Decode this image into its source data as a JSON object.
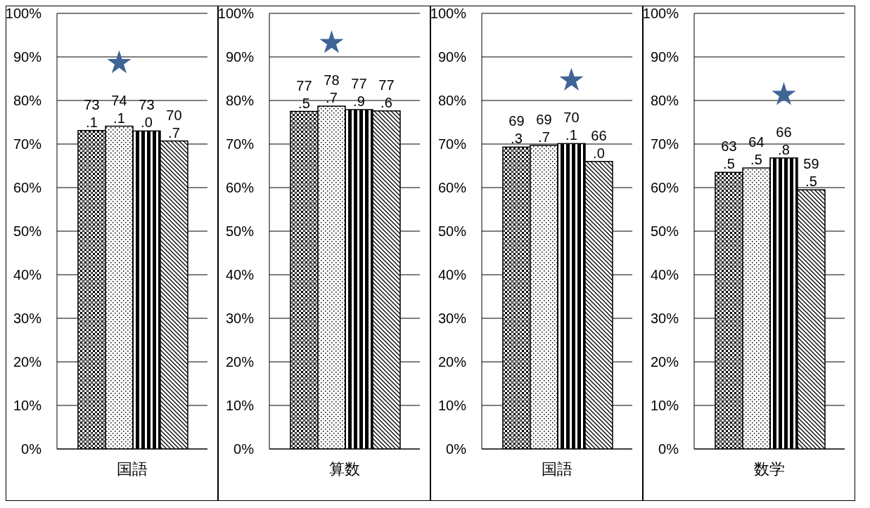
{
  "chart_data": [
    {
      "type": "bar",
      "categories": [
        "国語"
      ],
      "series": [
        {
          "color": "#000000",
          "values": [
            73.1
          ],
          "value_labels": [
            "73.1"
          ]
        },
        {
          "color": "#000000",
          "values": [
            74.1
          ],
          "value_labels": [
            "74.1"
          ]
        },
        {
          "color": "#000000",
          "values": [
            73.0
          ],
          "value_labels": [
            "73.0"
          ]
        },
        {
          "color": "#000000",
          "values": [
            70.7
          ],
          "value_labels": [
            "70.7"
          ]
        }
      ],
      "ylim": [
        0,
        100
      ],
      "yticks": [
        {
          "value": 0,
          "label": "0%"
        },
        {
          "value": 10,
          "label": "10%"
        },
        {
          "value": 20,
          "label": "20%"
        },
        {
          "value": 30,
          "label": "30%"
        },
        {
          "value": 40,
          "label": "40%"
        },
        {
          "value": 50,
          "label": "50%"
        },
        {
          "value": 60,
          "label": "60%"
        },
        {
          "value": 70,
          "label": "70%"
        },
        {
          "value": 80,
          "label": "80%"
        },
        {
          "value": 90,
          "label": "90%"
        },
        {
          "value": 100,
          "label": "100%"
        }
      ],
      "grid": "y",
      "legend": false
    },
    {
      "type": "bar",
      "categories": [
        "算数"
      ],
      "series": [
        {
          "color": "#000000",
          "values": [
            77.5
          ],
          "value_labels": [
            "77.5"
          ]
        },
        {
          "color": "#000000",
          "values": [
            78.7
          ],
          "value_labels": [
            "78.7"
          ]
        },
        {
          "color": "#000000",
          "values": [
            77.9
          ],
          "value_labels": [
            "77.9"
          ]
        },
        {
          "color": "#000000",
          "values": [
            77.6
          ],
          "value_labels": [
            "77.6"
          ]
        }
      ],
      "ylim": [
        0,
        100
      ],
      "yticks": [
        {
          "value": 0,
          "label": "0%"
        },
        {
          "value": 10,
          "label": "10%"
        },
        {
          "value": 20,
          "label": "20%"
        },
        {
          "value": 30,
          "label": "30%"
        },
        {
          "value": 40,
          "label": "40%"
        },
        {
          "value": 50,
          "label": "50%"
        },
        {
          "value": 60,
          "label": "60%"
        },
        {
          "value": 70,
          "label": "70%"
        },
        {
          "value": 80,
          "label": "80%"
        },
        {
          "value": 90,
          "label": "90%"
        },
        {
          "value": 100,
          "label": "100%"
        }
      ],
      "grid": "y",
      "legend": false
    },
    {
      "type": "bar",
      "categories": [
        "国語"
      ],
      "series": [
        {
          "color": "#000000",
          "values": [
            69.3
          ],
          "value_labels": [
            "69.3"
          ]
        },
        {
          "color": "#000000",
          "values": [
            69.7
          ],
          "value_labels": [
            "69.7"
          ]
        },
        {
          "color": "#000000",
          "values": [
            70.1
          ],
          "value_labels": [
            "70.1"
          ]
        },
        {
          "color": "#000000",
          "values": [
            66.0
          ],
          "value_labels": [
            "66.0"
          ]
        }
      ],
      "ylim": [
        0,
        100
      ],
      "yticks": [
        {
          "value": 0,
          "label": "0%"
        },
        {
          "value": 10,
          "label": "10%"
        },
        {
          "value": 20,
          "label": "20%"
        },
        {
          "value": 30,
          "label": "30%"
        },
        {
          "value": 40,
          "label": "40%"
        },
        {
          "value": 50,
          "label": "50%"
        },
        {
          "value": 60,
          "label": "60%"
        },
        {
          "value": 70,
          "label": "70%"
        },
        {
          "value": 80,
          "label": "80%"
        },
        {
          "value": 90,
          "label": "90%"
        },
        {
          "value": 100,
          "label": "100%"
        }
      ],
      "grid": "y",
      "legend": false
    },
    {
      "type": "bar",
      "categories": [
        "数学"
      ],
      "series": [
        {
          "color": "#000000",
          "values": [
            63.5
          ],
          "value_labels": [
            "63.5"
          ]
        },
        {
          "color": "#000000",
          "values": [
            64.5
          ],
          "value_labels": [
            "64.5"
          ]
        },
        {
          "color": "#000000",
          "values": [
            66.8
          ],
          "value_labels": [
            "66.8"
          ]
        },
        {
          "color": "#000000",
          "values": [
            59.5
          ],
          "value_labels": [
            "59.5"
          ]
        }
      ],
      "ylim": [
        0,
        100
      ],
      "yticks": [
        {
          "value": 0,
          "label": "0%"
        },
        {
          "value": 10,
          "label": "10%"
        },
        {
          "value": 20,
          "label": "20%"
        },
        {
          "value": 30,
          "label": "30%"
        },
        {
          "value": 40,
          "label": "40%"
        },
        {
          "value": 50,
          "label": "50%"
        },
        {
          "value": 60,
          "label": "60%"
        },
        {
          "value": 70,
          "label": "70%"
        },
        {
          "value": 80,
          "label": "80%"
        },
        {
          "value": 90,
          "label": "90%"
        },
        {
          "value": 100,
          "label": "100%"
        }
      ],
      "grid": "y",
      "legend": false
    }
  ]
}
